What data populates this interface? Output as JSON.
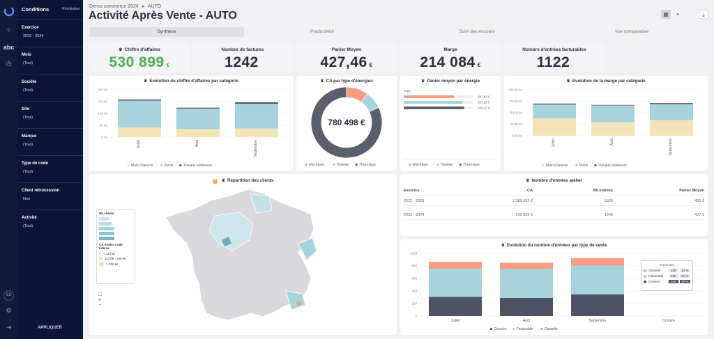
{
  "sidebar": {
    "header": "Conditions",
    "reset": "Réinitialiser",
    "apply": "APPLIQUER",
    "rail_user": "SD",
    "rail_abc": "abc",
    "filters": [
      {
        "label": "Exercice",
        "value": "2023 - 2024"
      },
      {
        "label": "Mois",
        "value": "(Tout)"
      },
      {
        "label": "Société",
        "value": "(Tout)"
      },
      {
        "label": "Site",
        "value": "(Tout)"
      },
      {
        "label": "Marque",
        "value": "(Tout)"
      },
      {
        "label": "Type de code",
        "value": "(Tout)"
      },
      {
        "label": "Client rétrocession",
        "value": "Non"
      },
      {
        "label": "Activité",
        "value": "(Tout)"
      }
    ]
  },
  "header": {
    "breadcrumb_1": "Démo commerce 2024",
    "breadcrumb_sep": "▸",
    "breadcrumb_2": "AUTO",
    "title": "Activité Après Vente - AUTO"
  },
  "tabs": [
    "Synthèse",
    "Productivité",
    "Suivi des encours",
    "Vue comparative"
  ],
  "kpis": [
    {
      "label": "Chiffre d'affaires",
      "value": "530 899",
      "unit": "€",
      "color": "#4caf50"
    },
    {
      "label": "Nombre de factures",
      "value": "1242",
      "unit": "",
      "color": "#2b2d42"
    },
    {
      "label": "Panier Moyen",
      "value": "427,46",
      "unit": "€",
      "color": "#2b2d42"
    },
    {
      "label": "Marge",
      "value": "214 084",
      "unit": "€",
      "color": "#2b2d42"
    },
    {
      "label": "Nombre d'entrées facturables",
      "value": "1122",
      "unit": "",
      "color": "#2b2d42"
    }
  ],
  "colors": {
    "mo": "#f3e4b8",
    "piece": "#a7d3db",
    "travaux": "#505565",
    "elec": "#f79d84",
    "hyb": "#a7d3db",
    "therm": "#5b5f6c",
    "cession": "#4d5363",
    "facturable": "#a7d3db",
    "garantie": "#f79d84"
  },
  "charts": {
    "ca_cat": {
      "title": "Evolution du chiffre d'affaires par catégorie"
    },
    "ca_energy": {
      "title": "CA par type d'énergies",
      "center": "780 498 €"
    },
    "panier_energy": {
      "title": "Panier moyen par énergie",
      "total_label": "Total"
    },
    "marge_cat": {
      "title": "Evolution de la marge par catégorie"
    },
    "map": {
      "title": "Répartition des clients",
      "legend_title": "Nb clients",
      "legend_title2": "CA Atelier Code Interne",
      "leg_values": [
        "< 113 k€",
        "113 k€ - 226 k€",
        "> 226 k€"
      ]
    },
    "entries": {
      "title": "Nombre d'entrées atelier"
    },
    "entries_type": {
      "title": "Evolution du nombre d'entrées par type de vente",
      "tooltip_title": "Septembre"
    }
  },
  "table": {
    "headers": [
      "Exercice",
      "CA",
      "Nb entrées",
      "Panier Moyen"
    ],
    "rows": [
      [
        "2022 - 2023",
        "2 389 662 €",
        "5326",
        "456 €"
      ],
      [
        "2023 - 2024",
        "530 899 €",
        "1246",
        "427 €"
      ]
    ]
  },
  "tooltip": {
    "rows": [
      {
        "label": "Garantie",
        "count": "120",
        "pct": "13 %"
      },
      {
        "label": "Facturable",
        "count": "460",
        "pct": "51 %"
      },
      {
        "label": "Cession",
        "count": "345",
        "pct": "36 %"
      }
    ]
  },
  "chart_data": [
    {
      "type": "bar",
      "title": "Evolution du chiffre d'affaires par catégorie",
      "categories": [
        "Juillet",
        "Août",
        "Septembre"
      ],
      "yticks": [
        "0 k€",
        "50 k€",
        "100 k€",
        "150 k€",
        "200 k€"
      ],
      "ylim": [
        0,
        220
      ],
      "series": [
        {
          "name": "Main d'oeuvre",
          "values": [
            45,
            38,
            40
          ]
        },
        {
          "name": "Pièce",
          "values": [
            125,
            95,
            115
          ]
        },
        {
          "name": "Travaux extérieurs",
          "values": [
            5,
            4,
            7
          ]
        }
      ]
    },
    {
      "type": "pie",
      "title": "CA par type d'énergies",
      "series": [
        {
          "name": "Electrique",
          "values": [
            10
          ]
        },
        {
          "name": "Hybride",
          "values": [
            8
          ]
        },
        {
          "name": "Thermique",
          "values": [
            82
          ]
        }
      ]
    },
    {
      "type": "bar",
      "title": "Panier moyen par énergie",
      "categories": [
        "Electrique",
        "Hybride",
        "Thermique"
      ],
      "values": [
        287.83,
        337.18,
        346.42
      ],
      "labels": [
        "287,83 €",
        "337,18 €",
        "346,42 €"
      ]
    },
    {
      "type": "bar",
      "title": "Evolution de la marge par catégorie",
      "categories": [
        "Juillet",
        "Août",
        "Septembre"
      ],
      "yticks": [
        "0,00 k€",
        "25,00 k€",
        "50,00 k€",
        "75,00 k€",
        "100,00 k€"
      ],
      "ylim": [
        0,
        100
      ],
      "series": [
        {
          "name": "Main d'oeuvre",
          "values": [
            38,
            30,
            34
          ]
        },
        {
          "name": "Pièce",
          "values": [
            30,
            36,
            35
          ]
        },
        {
          "name": "Travaux extérieurs",
          "values": [
            2,
            1,
            2
          ]
        }
      ]
    },
    {
      "type": "bar",
      "title": "Evolution du nombre d'entrées par type de vente",
      "categories": [
        "Juillet",
        "Août",
        "Septembre",
        "Octobre"
      ],
      "yticks": [
        "0",
        "200",
        "400",
        "600",
        "800",
        "1000"
      ],
      "ylim": [
        0,
        1000
      ],
      "series": [
        {
          "name": "Cession",
          "values": [
            305,
            290,
            345,
            0
          ]
        },
        {
          "name": "Facturable",
          "values": [
            450,
            460,
            460,
            0
          ]
        },
        {
          "name": "Garantie",
          "values": [
            110,
            100,
            120,
            0
          ]
        }
      ]
    }
  ]
}
